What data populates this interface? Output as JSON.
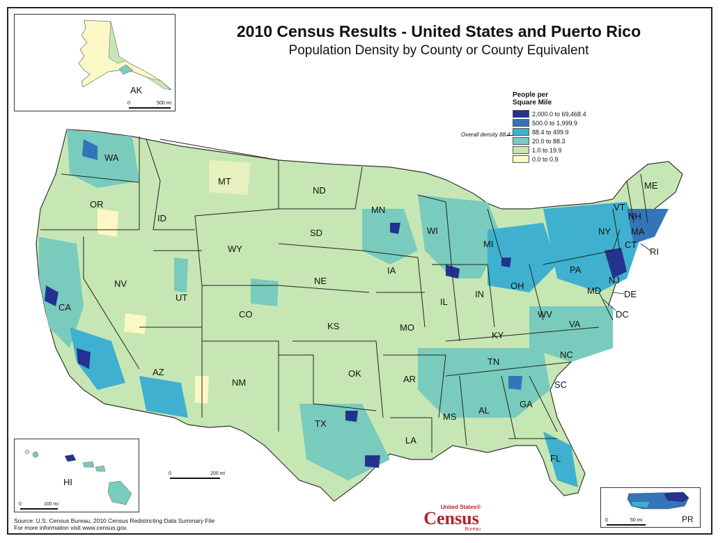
{
  "title": "2010 Census Results - United States and Puerto Rico",
  "subtitle": "Population Density by County or County Equivalent",
  "legend": {
    "title": "People per Square Mile",
    "classes": [
      {
        "label": "2,000.0 to 69,468.4",
        "color": "#24318f"
      },
      {
        "label": "500.0 to 1,999.9",
        "color": "#3474b8"
      },
      {
        "label": "88.4 to 499.9",
        "color": "#3fb0cf"
      },
      {
        "label": "20.0 to 88.3",
        "color": "#79cbbd"
      },
      {
        "label": "1.0 to 19.9",
        "color": "#c6e7b4"
      },
      {
        "label": "0.0 to 0.9",
        "color": "#fbf8c6"
      }
    ],
    "overall_density_label": "Overall density 88.4"
  },
  "state_labels": [
    "WA",
    "OR",
    "CA",
    "NV",
    "ID",
    "MT",
    "WY",
    "UT",
    "AZ",
    "CO",
    "NM",
    "ND",
    "SD",
    "NE",
    "KS",
    "OK",
    "TX",
    "MN",
    "IA",
    "MO",
    "AR",
    "LA",
    "WI",
    "IL",
    "MI",
    "IN",
    "OH",
    "KY",
    "TN",
    "MS",
    "AL",
    "GA",
    "FL",
    "SC",
    "NC",
    "VA",
    "WV",
    "PA",
    "NY",
    "VT",
    "NH",
    "ME",
    "MA",
    "CT",
    "RI",
    "NJ",
    "DE",
    "MD",
    "DC"
  ],
  "insets": {
    "alaska": {
      "label": "AK",
      "scale_start": "0",
      "scale_end": "500 mi"
    },
    "hawaii": {
      "label": "HI",
      "scale_start": "0",
      "scale_end": "100 mi"
    },
    "puerto_rico": {
      "label": "PR",
      "scale_start": "0",
      "scale_end": "50 mi"
    }
  },
  "main_scale": {
    "start": "0",
    "end": "200 mi"
  },
  "source": {
    "line1": "Source:  U.S. Census Bureau, 2010 Census Redistricting Data Summary File",
    "line2": "For more information visit www.census.gov."
  },
  "logo": {
    "line1": "United States®",
    "line2": "Census",
    "line3": "Bureau"
  }
}
